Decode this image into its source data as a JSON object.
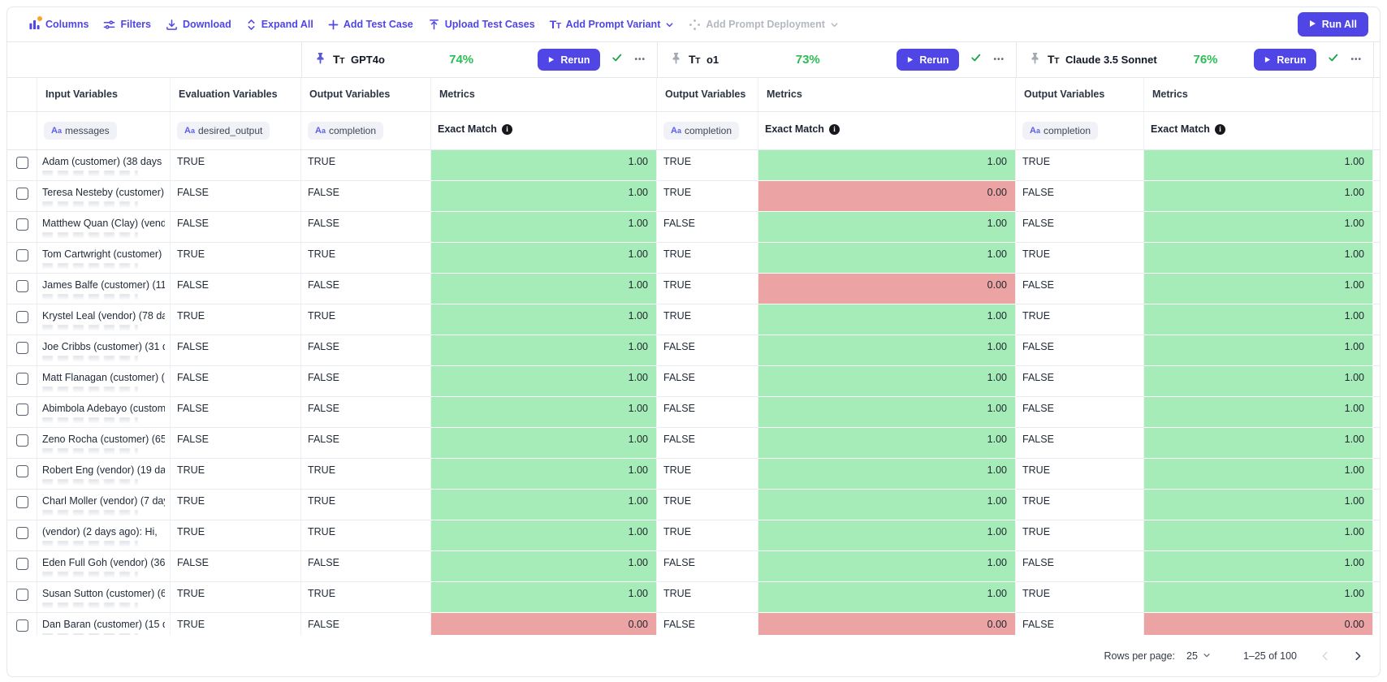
{
  "toolbar": {
    "columns": "Columns",
    "filters": "Filters",
    "download": "Download",
    "expand_all": "Expand All",
    "add_test_case": "Add Test Case",
    "upload_test_cases": "Upload Test Cases",
    "add_prompt_variant": "Add Prompt Variant",
    "add_prompt_deployment": "Add Prompt Deployment",
    "run_all": "Run All"
  },
  "models": [
    {
      "name": "GPT4o",
      "score": "74%",
      "rerun_label": "Rerun",
      "pinned": true
    },
    {
      "name": "o1",
      "score": "73%",
      "rerun_label": "Rerun",
      "pinned": false
    },
    {
      "name": "Claude 3.5 Sonnet",
      "score": "76%",
      "rerun_label": "Rerun",
      "pinned": false
    }
  ],
  "columns": {
    "input_variables": "Input Variables",
    "evaluation_variables": "Evaluation Variables",
    "output_variables": "Output Variables",
    "metrics": "Metrics",
    "pill_prefix": "Aa",
    "messages_pill": "messages",
    "desired_output_pill": "desired_output",
    "completion_pill": "completion",
    "exact_match": "Exact Match"
  },
  "rows": [
    {
      "name": "Adam (customer) (38 days",
      "desired": "TRUE",
      "outputs": [
        {
          "value": "TRUE",
          "score": "1.00",
          "pass": true
        },
        {
          "value": "TRUE",
          "score": "1.00",
          "pass": true
        },
        {
          "value": "TRUE",
          "score": "1.00",
          "pass": true
        }
      ],
      "variant4_output": "TRUE"
    },
    {
      "name": "Teresa Nesteby (customer) (48",
      "desired": "FALSE",
      "outputs": [
        {
          "value": "FALSE",
          "score": "1.00",
          "pass": true
        },
        {
          "value": "TRUE",
          "score": "0.00",
          "pass": false
        },
        {
          "value": "FALSE",
          "score": "1.00",
          "pass": true
        }
      ],
      "variant4_output": "FALSE"
    },
    {
      "name": "Matthew Quan (Clay) (vendor)",
      "desired": "FALSE",
      "outputs": [
        {
          "value": "FALSE",
          "score": "1.00",
          "pass": true
        },
        {
          "value": "FALSE",
          "score": "1.00",
          "pass": true
        },
        {
          "value": "FALSE",
          "score": "1.00",
          "pass": true
        }
      ],
      "variant4_output": "FALSE"
    },
    {
      "name": "Tom Cartwright (customer) (97",
      "desired": "TRUE",
      "outputs": [
        {
          "value": "TRUE",
          "score": "1.00",
          "pass": true
        },
        {
          "value": "TRUE",
          "score": "1.00",
          "pass": true
        },
        {
          "value": "TRUE",
          "score": "1.00",
          "pass": true
        }
      ],
      "variant4_output": "TRUE"
    },
    {
      "name": "James Balfe (customer) (118",
      "desired": "FALSE",
      "outputs": [
        {
          "value": "FALSE",
          "score": "1.00",
          "pass": true
        },
        {
          "value": "TRUE",
          "score": "0.00",
          "pass": false
        },
        {
          "value": "FALSE",
          "score": "1.00",
          "pass": true
        }
      ],
      "variant4_output": "FALSE"
    },
    {
      "name": "Krystel Leal (vendor) (78 days",
      "desired": "TRUE",
      "outputs": [
        {
          "value": "TRUE",
          "score": "1.00",
          "pass": true
        },
        {
          "value": "TRUE",
          "score": "1.00",
          "pass": true
        },
        {
          "value": "TRUE",
          "score": "1.00",
          "pass": true
        }
      ],
      "variant4_output": "TRUE"
    },
    {
      "name": "Joe Cribbs (customer) (31 days",
      "desired": "FALSE",
      "outputs": [
        {
          "value": "FALSE",
          "score": "1.00",
          "pass": true
        },
        {
          "value": "FALSE",
          "score": "1.00",
          "pass": true
        },
        {
          "value": "FALSE",
          "score": "1.00",
          "pass": true
        }
      ],
      "variant4_output": "FALSE"
    },
    {
      "name": "Matt Flanagan (customer) (112",
      "desired": "FALSE",
      "outputs": [
        {
          "value": "FALSE",
          "score": "1.00",
          "pass": true
        },
        {
          "value": "FALSE",
          "score": "1.00",
          "pass": true
        },
        {
          "value": "FALSE",
          "score": "1.00",
          "pass": true
        }
      ],
      "variant4_output": "FALSE"
    },
    {
      "name": "Abimbola Adebayo (customer)",
      "desired": "FALSE",
      "outputs": [
        {
          "value": "FALSE",
          "score": "1.00",
          "pass": true
        },
        {
          "value": "FALSE",
          "score": "1.00",
          "pass": true
        },
        {
          "value": "FALSE",
          "score": "1.00",
          "pass": true
        }
      ],
      "variant4_output": "FALSE"
    },
    {
      "name": "Zeno Rocha (customer) (65",
      "desired": "FALSE",
      "outputs": [
        {
          "value": "FALSE",
          "score": "1.00",
          "pass": true
        },
        {
          "value": "FALSE",
          "score": "1.00",
          "pass": true
        },
        {
          "value": "FALSE",
          "score": "1.00",
          "pass": true
        }
      ],
      "variant4_output": "FALSE"
    },
    {
      "name": "Robert Eng (vendor) (19 days",
      "desired": "TRUE",
      "outputs": [
        {
          "value": "TRUE",
          "score": "1.00",
          "pass": true
        },
        {
          "value": "TRUE",
          "score": "1.00",
          "pass": true
        },
        {
          "value": "TRUE",
          "score": "1.00",
          "pass": true
        }
      ],
      "variant4_output": "TRUE"
    },
    {
      "name": "Charl Moller (vendor) (7 days",
      "desired": "TRUE",
      "outputs": [
        {
          "value": "TRUE",
          "score": "1.00",
          "pass": true
        },
        {
          "value": "TRUE",
          "score": "1.00",
          "pass": true
        },
        {
          "value": "TRUE",
          "score": "1.00",
          "pass": true
        }
      ],
      "variant4_output": "TRUE"
    },
    {
      "name": " (vendor) (2 days ago): Hi,",
      "desired": "TRUE",
      "outputs": [
        {
          "value": "TRUE",
          "score": "1.00",
          "pass": true
        },
        {
          "value": "TRUE",
          "score": "1.00",
          "pass": true
        },
        {
          "value": "TRUE",
          "score": "1.00",
          "pass": true
        }
      ],
      "variant4_output": "TRUE"
    },
    {
      "name": "Eden Full Goh (vendor) (36",
      "desired": "FALSE",
      "outputs": [
        {
          "value": "FALSE",
          "score": "1.00",
          "pass": true
        },
        {
          "value": "FALSE",
          "score": "1.00",
          "pass": true
        },
        {
          "value": "FALSE",
          "score": "1.00",
          "pass": true
        }
      ],
      "variant4_output": "FALSE"
    },
    {
      "name": "Susan Sutton (customer) (63",
      "desired": "TRUE",
      "outputs": [
        {
          "value": "TRUE",
          "score": "1.00",
          "pass": true
        },
        {
          "value": "TRUE",
          "score": "1.00",
          "pass": true
        },
        {
          "value": "TRUE",
          "score": "1.00",
          "pass": true
        }
      ],
      "variant4_output": "TRUE"
    },
    {
      "name": "Dan Baran (customer) (15 days",
      "desired": "TRUE",
      "outputs": [
        {
          "value": "FALSE",
          "score": "0.00",
          "pass": false
        },
        {
          "value": "FALSE",
          "score": "0.00",
          "pass": false
        },
        {
          "value": "FALSE",
          "score": "0.00",
          "pass": false
        }
      ],
      "variant4_output": "FALSE"
    }
  ],
  "footer": {
    "rows_per_page_label": "Rows per page:",
    "rows_per_page_value": "25",
    "range": "1–25 of 100"
  },
  "colors": {
    "accent": "#4f46e5",
    "score_green": "#2bbd54",
    "pass_bg": "#a6ecb8",
    "fail_bg": "#eca3a3"
  }
}
